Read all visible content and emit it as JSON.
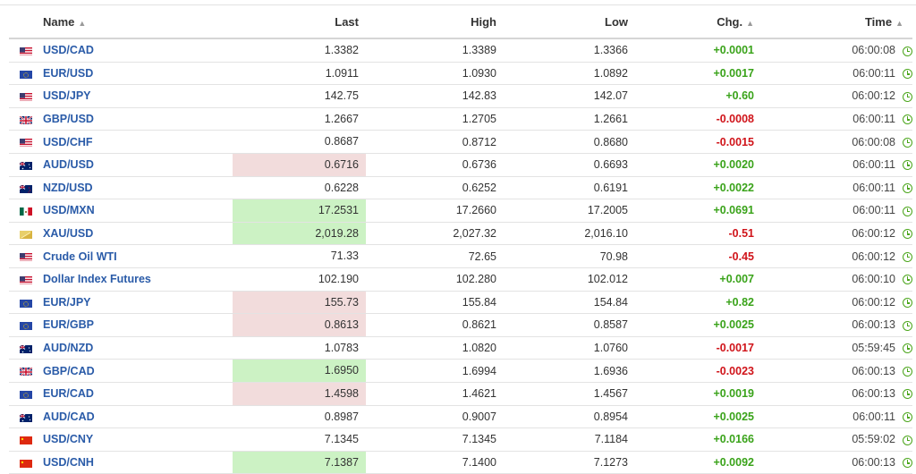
{
  "table": {
    "headers": {
      "name": "Name",
      "last": "Last",
      "high": "High",
      "low": "Low",
      "chg": "Chg.",
      "time": "Time"
    },
    "rows": [
      {
        "name": "USD/CAD",
        "flag": "us-flag",
        "last": "1.3382",
        "high": "1.3389",
        "low": "1.3366",
        "chg": "+0.0001",
        "time": "06:00:08",
        "highlight": "none"
      },
      {
        "name": "EUR/USD",
        "flag": "eu-flag",
        "last": "1.0911",
        "high": "1.0930",
        "low": "1.0892",
        "chg": "+0.0017",
        "time": "06:00:11",
        "highlight": "none"
      },
      {
        "name": "USD/JPY",
        "flag": "us-flag",
        "last": "142.75",
        "high": "142.83",
        "low": "142.07",
        "chg": "+0.60",
        "time": "06:00:12",
        "highlight": "none"
      },
      {
        "name": "GBP/USD",
        "flag": "uk-flag",
        "last": "1.2667",
        "high": "1.2705",
        "low": "1.2661",
        "chg": "-0.0008",
        "time": "06:00:11",
        "highlight": "none"
      },
      {
        "name": "USD/CHF",
        "flag": "us-flag",
        "last": "0.8687",
        "high": "0.8712",
        "low": "0.8680",
        "chg": "-0.0015",
        "time": "06:00:08",
        "highlight": "none"
      },
      {
        "name": "AUD/USD",
        "flag": "au-flag",
        "last": "0.6716",
        "high": "0.6736",
        "low": "0.6693",
        "chg": "+0.0020",
        "time": "06:00:11",
        "highlight": "down"
      },
      {
        "name": "NZD/USD",
        "flag": "nz-flag",
        "last": "0.6228",
        "high": "0.6252",
        "low": "0.6191",
        "chg": "+0.0022",
        "time": "06:00:11",
        "highlight": "none"
      },
      {
        "name": "USD/MXN",
        "flag": "mx-flag",
        "last": "17.2531",
        "high": "17.2660",
        "low": "17.2005",
        "chg": "+0.0691",
        "time": "06:00:11",
        "highlight": "up"
      },
      {
        "name": "XAU/USD",
        "flag": "gold-flag",
        "last": "2,019.28",
        "high": "2,027.32",
        "low": "2,016.10",
        "chg": "-0.51",
        "time": "06:00:12",
        "highlight": "up"
      },
      {
        "name": "Crude Oil WTI",
        "flag": "us-flag",
        "last": "71.33",
        "high": "72.65",
        "low": "70.98",
        "chg": "-0.45",
        "time": "06:00:12",
        "highlight": "none"
      },
      {
        "name": "Dollar Index Futures",
        "flag": "us-flag",
        "last": "102.190",
        "high": "102.280",
        "low": "102.012",
        "chg": "+0.007",
        "time": "06:00:10",
        "highlight": "none"
      },
      {
        "name": "EUR/JPY",
        "flag": "eu-flag",
        "last": "155.73",
        "high": "155.84",
        "low": "154.84",
        "chg": "+0.82",
        "time": "06:00:12",
        "highlight": "down"
      },
      {
        "name": "EUR/GBP",
        "flag": "eu-flag",
        "last": "0.8613",
        "high": "0.8621",
        "low": "0.8587",
        "chg": "+0.0025",
        "time": "06:00:13",
        "highlight": "down"
      },
      {
        "name": "AUD/NZD",
        "flag": "au-flag",
        "last": "1.0783",
        "high": "1.0820",
        "low": "1.0760",
        "chg": "-0.0017",
        "time": "05:59:45",
        "highlight": "none"
      },
      {
        "name": "GBP/CAD",
        "flag": "uk-flag",
        "last": "1.6950",
        "high": "1.6994",
        "low": "1.6936",
        "chg": "-0.0023",
        "time": "06:00:13",
        "highlight": "up"
      },
      {
        "name": "EUR/CAD",
        "flag": "eu-flag",
        "last": "1.4598",
        "high": "1.4621",
        "low": "1.4567",
        "chg": "+0.0019",
        "time": "06:00:13",
        "highlight": "down"
      },
      {
        "name": "AUD/CAD",
        "flag": "au-flag",
        "last": "0.8987",
        "high": "0.9007",
        "low": "0.8954",
        "chg": "+0.0025",
        "time": "06:00:11",
        "highlight": "none"
      },
      {
        "name": "USD/CNY",
        "flag": "cn-flag",
        "last": "7.1345",
        "high": "7.1345",
        "low": "7.1184",
        "chg": "+0.0166",
        "time": "05:59:02",
        "highlight": "none"
      },
      {
        "name": "USD/CNH",
        "flag": "cn-flag",
        "last": "7.1387",
        "high": "7.1400",
        "low": "7.1273",
        "chg": "+0.0092",
        "time": "06:00:13",
        "highlight": "up"
      }
    ]
  },
  "colors": {
    "link": "#2a5ba8",
    "positive": "#3aa31a",
    "negative": "#d0141a",
    "up_highlight": "#ccf2c4",
    "down_highlight": "#f2dcdc",
    "clock": "#4aa51a"
  }
}
